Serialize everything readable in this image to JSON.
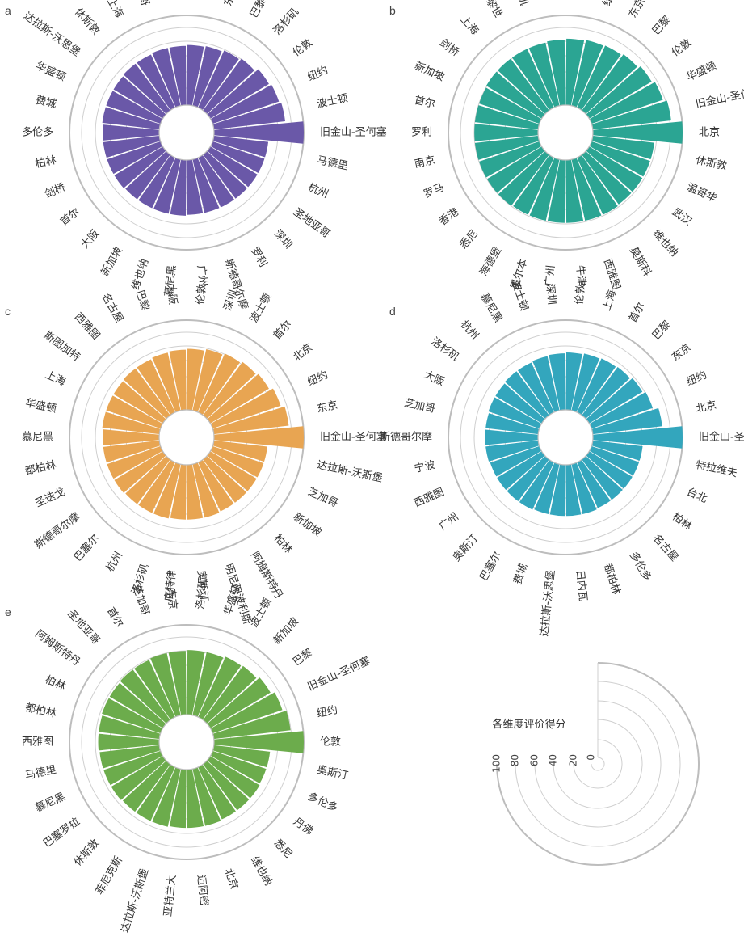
{
  "scale": {
    "max": 100,
    "ticks": [
      0,
      20,
      40,
      60,
      80,
      100
    ],
    "title": "各维度评价得分"
  },
  "chart_data": [
    {
      "type": "radial-bar",
      "panel": "a",
      "color": "#6a58a8",
      "direction": "clockwise from east",
      "categories": [
        "旧金山-圣何塞",
        "马德里",
        "杭州",
        "圣地亚哥",
        "深圳",
        "罗利",
        "斯德哥尔摩",
        "广州",
        "慕尼黑",
        "维也纳",
        "新加坡",
        "大阪",
        "首尔",
        "剑桥",
        "柏林",
        "多伦多",
        "费城",
        "华盛顿",
        "达拉斯-沃思堡",
        "休斯敦",
        "上海",
        "芝加哥",
        "西雅图",
        "北京",
        "东京",
        "巴黎",
        "洛杉矶",
        "伦敦",
        "纽约",
        "波士顿"
      ],
      "values": [
        100,
        61,
        61,
        61,
        61,
        61,
        61,
        61,
        62,
        62,
        62,
        62,
        63,
        63,
        63,
        63,
        64,
        64,
        64,
        65,
        65,
        66,
        66,
        67,
        68,
        70,
        72,
        76,
        78,
        80
      ]
    },
    {
      "type": "radial-bar",
      "panel": "b",
      "color": "#2ba593",
      "direction": "clockwise from east",
      "categories": [
        "北京",
        "休斯敦",
        "温哥华",
        "武汉",
        "维也纳",
        "莫斯科",
        "西雅图",
        "牛津",
        "广州",
        "墨尔本",
        "海德堡",
        "悉尼",
        "香港",
        "罗马",
        "南京",
        "罗利",
        "首尔",
        "新加坡",
        "剑桥",
        "上海",
        "苏黎世",
        "洛杉矶",
        "芝加哥",
        "波士顿",
        "纽约",
        "东京",
        "巴黎",
        "伦敦",
        "华盛顿",
        "旧金山-圣何塞"
      ],
      "values": [
        100,
        69,
        69,
        69,
        69,
        70,
        70,
        70,
        70,
        70,
        70,
        71,
        71,
        71,
        71,
        71,
        71,
        71,
        72,
        72,
        72,
        72,
        73,
        74,
        75,
        76,
        78,
        81,
        84,
        88
      ]
    },
    {
      "type": "radial-bar",
      "panel": "c",
      "color": "#e8a552",
      "direction": "clockwise from east",
      "categories": [
        "旧金山-圣何塞",
        "达拉斯-沃斯堡",
        "芝加哥",
        "新加坡",
        "柏林",
        "阿姆斯特丹",
        "明尼阿波利斯",
        "奥斯汀",
        "底特律",
        "洛杉矶",
        "杭州",
        "巴塞尔",
        "斯德哥尔摩",
        "圣迭戈",
        "都柏林",
        "慕尼黑",
        "华盛顿",
        "上海",
        "斯图加特",
        "西雅图",
        "名古屋",
        "巴黎",
        "大阪",
        "伦敦",
        "深圳",
        "波士顿",
        "首尔",
        "北京",
        "纽约",
        "东京"
      ],
      "values": [
        100,
        60,
        60,
        60,
        60,
        60,
        61,
        61,
        61,
        62,
        62,
        62,
        63,
        63,
        63,
        63,
        64,
        64,
        64,
        65,
        65,
        66,
        67,
        68,
        70,
        72,
        74,
        76,
        80,
        84
      ]
    },
    {
      "type": "radial-bar",
      "panel": "d",
      "color": "#33a6bd",
      "direction": "clockwise from east",
      "categories": [
        "旧金山-圣何塞",
        "特拉维夫",
        "台北",
        "柏林",
        "名古屋",
        "多伦多",
        "都柏林",
        "日内瓦",
        "达拉斯-沃思堡",
        "费城",
        "巴塞尔",
        "奥斯汀",
        "广州",
        "西雅图",
        "宁波",
        "斯德哥尔摩",
        "芝加哥",
        "大阪",
        "洛杉矶",
        "杭州",
        "慕尼黑",
        "波士顿",
        "深圳",
        "伦敦",
        "上海",
        "首尔",
        "巴黎",
        "东京",
        "纽约",
        "北京"
      ],
      "values": [
        100,
        56,
        56,
        56,
        56,
        56,
        57,
        57,
        57,
        57,
        58,
        58,
        58,
        58,
        59,
        59,
        59,
        60,
        60,
        61,
        61,
        62,
        63,
        64,
        65,
        66,
        67,
        69,
        72,
        78
      ]
    },
    {
      "type": "radial-bar",
      "panel": "e",
      "color": "#6cac4c",
      "direction": "clockwise from east",
      "categories": [
        "伦敦",
        "奥斯汀",
        "多伦多",
        "丹佛",
        "悉尼",
        "维也纳",
        "北京",
        "迈阿密",
        "亚特兰大",
        "达拉斯-沃斯堡",
        "菲尼克斯",
        "休斯敦",
        "巴塞罗拉",
        "慕尼黑",
        "马德里",
        "西雅图",
        "都柏林",
        "柏林",
        "阿姆斯特丹",
        "圣地亚哥",
        "首尔",
        "芝加哥",
        "东京",
        "洛杉矶",
        "华盛顿",
        "波士顿",
        "新加坡",
        "巴黎",
        "旧金山-圣何塞",
        "纽约"
      ],
      "values": [
        100,
        63,
        63,
        64,
        64,
        64,
        65,
        65,
        65,
        66,
        66,
        66,
        67,
        67,
        67,
        68,
        68,
        69,
        69,
        70,
        70,
        71,
        71,
        72,
        72,
        74,
        75,
        78,
        82,
        86
      ]
    }
  ]
}
